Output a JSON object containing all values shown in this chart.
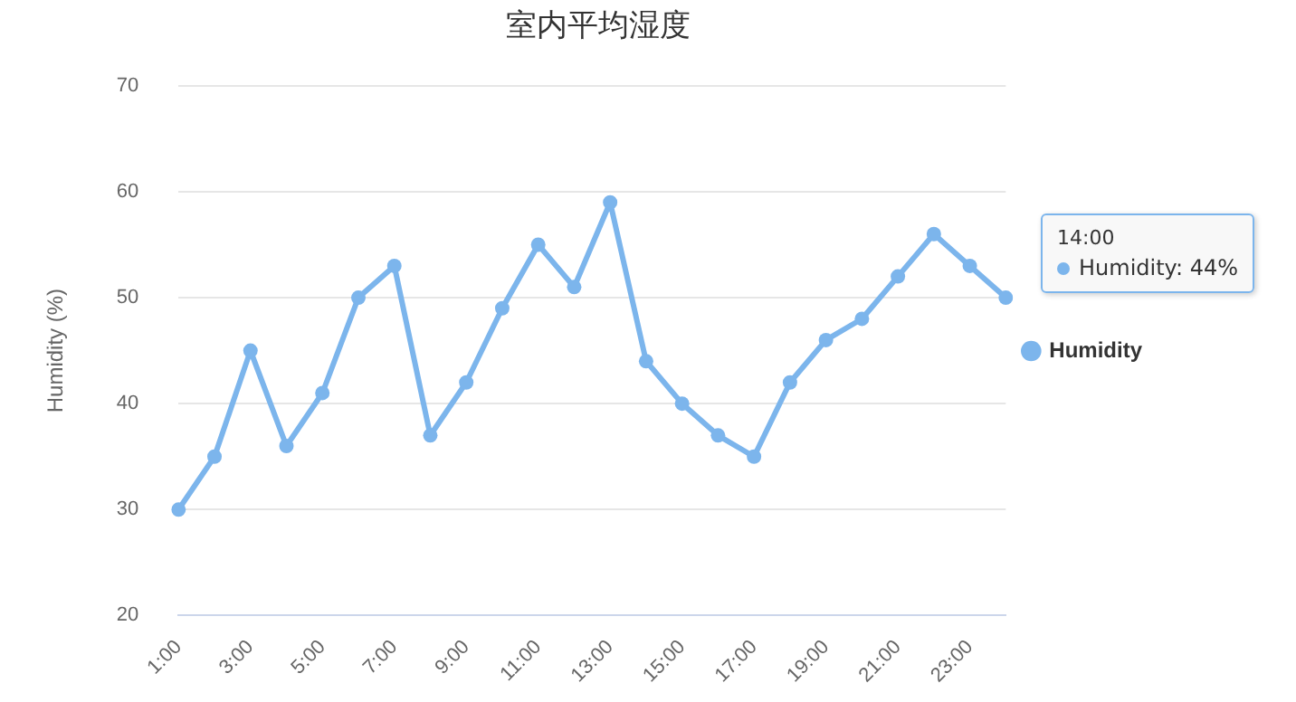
{
  "chart_data": {
    "type": "line",
    "title": "室内平均湿度",
    "ylabel": "Humidity (%)",
    "categories": [
      "1:00",
      null,
      "3:00",
      null,
      "5:00",
      null,
      "7:00",
      null,
      "9:00",
      null,
      "11:00",
      null,
      "13:00",
      null,
      "15:00",
      null,
      "17:00",
      null,
      "19:00",
      null,
      "21:00",
      null,
      "23:00",
      null
    ],
    "series": [
      {
        "name": "Humidity",
        "color": "#7cb5ec",
        "values": [
          30,
          35,
          45,
          36,
          41,
          50,
          53,
          37,
          42,
          49,
          55,
          51,
          59,
          44,
          40,
          37,
          35,
          42,
          46,
          48,
          52,
          56,
          53,
          50
        ]
      }
    ],
    "ylim": [
      20,
      70
    ],
    "yticks": [
      20,
      30,
      40,
      50,
      60,
      70
    ],
    "grid": "y",
    "legend": "right",
    "marker": "circle",
    "line_style": "solid",
    "annotations": [
      "14:00",
      "Humidity: 44%"
    ]
  }
}
